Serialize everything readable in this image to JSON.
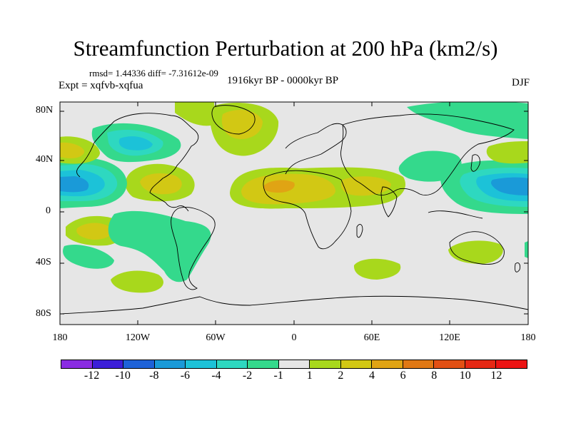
{
  "title": "Streamfunction Perturbation at 200 hPa (km2/s)",
  "stats_text": "rmsd= 1.44336 diff= -7.31612e-09",
  "experiment_text": "Expt = xqfvb-xqfua",
  "period_text": "1916kyr BP - 0000kyr BP",
  "season": "DJF",
  "lat_ticks": [
    "80N",
    "40N",
    "0",
    "40S",
    "80S"
  ],
  "lon_ticks": [
    "180",
    "120W",
    "60W",
    "0",
    "60E",
    "120E",
    "180"
  ],
  "colorbar": {
    "labels": [
      "-12",
      "-10",
      "-8",
      "-6",
      "-4",
      "-2",
      "-1",
      "1",
      "2",
      "4",
      "6",
      "8",
      "10",
      "12"
    ],
    "colors": [
      "#8a2be2",
      "#3c1ed8",
      "#1e62d8",
      "#1a9ad8",
      "#1cc2d8",
      "#2ed8c0",
      "#34d98c",
      "#e6e6e6",
      "#a8d81c",
      "#d2c814",
      "#e0a414",
      "#e07814",
      "#e25014",
      "#e62814",
      "#ec1414"
    ]
  },
  "map_data": {
    "projection": "cylindrical-equidistant",
    "lon_range": [
      -180,
      180
    ],
    "lat_range": [
      -90,
      90
    ],
    "anomalies": [
      {
        "name": "north-atlantic-positive",
        "lon": -22,
        "lat": 65,
        "value": 2
      },
      {
        "name": "north-africa-positive",
        "lon": 5,
        "lat": 18,
        "value": 6
      },
      {
        "name": "middle-east-positive",
        "lon": 45,
        "lat": 20,
        "value": 2
      },
      {
        "name": "central-america-positive",
        "lon": -100,
        "lat": 25,
        "value": 4
      },
      {
        "name": "east-pacific-negative",
        "lon": -170,
        "lat": 20,
        "value": -6
      },
      {
        "name": "west-pacific-negative",
        "lon": 165,
        "lat": 20,
        "value": -6
      },
      {
        "name": "north-america-negative",
        "lon": -118,
        "lat": 55,
        "value": -4
      },
      {
        "name": "south-pacific-positive",
        "lon": -145,
        "lat": -15,
        "value": 2
      },
      {
        "name": "australia-positive",
        "lon": 137,
        "lat": -32,
        "value": 2
      },
      {
        "name": "southern-indian-positive",
        "lon": 68,
        "lat": -45,
        "value": 2
      },
      {
        "name": "south-pacific-high-positive",
        "lon": -130,
        "lat": -50,
        "value": 2
      },
      {
        "name": "south-america-negative",
        "lon": -60,
        "lat": -15,
        "value": -2
      },
      {
        "name": "asia-negative",
        "lon": 135,
        "lat": 55,
        "value": -2
      },
      {
        "name": "china-negative",
        "lon": 112,
        "lat": 32,
        "value": -2
      }
    ]
  }
}
